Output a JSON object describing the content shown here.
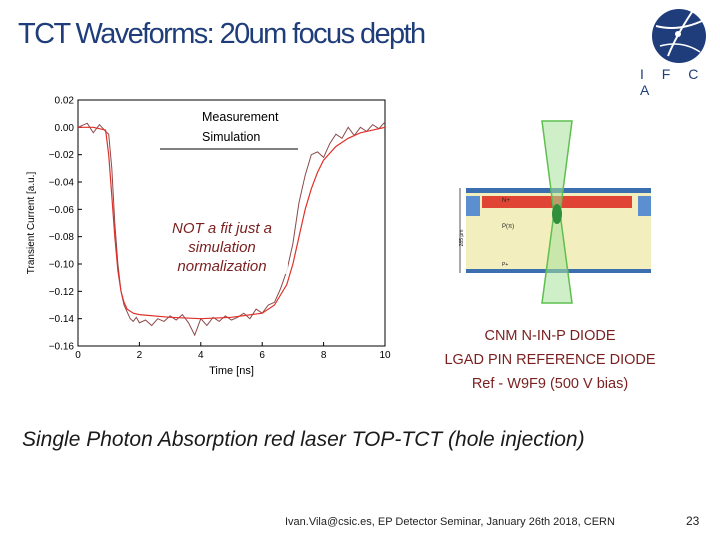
{
  "slide": {
    "title": "TCT Waveforms:  20um focus depth",
    "logo_text": "I F C A",
    "subtitle": "Single Photon Absorption  red laser  TOP-TCT (hole injection)",
    "footer": "Ivan.Vila@csic.es, EP Detector Seminar, January 26th 2018, CERN",
    "page_number": "23",
    "caption_lines": [
      "CNM N-IN-P DIODE",
      "LGAD PIN REFERENCE DIODE",
      "Ref - W9F9  (500 V bias)"
    ],
    "annotation_lines": [
      "NOT a fit just a",
      "simulation",
      "normalization"
    ]
  },
  "diagram": {
    "labels": [
      "N+",
      "P(π)",
      "P+",
      "285 μm"
    ]
  },
  "chart_data": {
    "type": "line",
    "title": "",
    "xlabel": "Time [ns]",
    "ylabel": "Transient Current [a.u.]",
    "xlim": [
      0,
      10
    ],
    "ylim": [
      -0.16,
      0.02
    ],
    "xticks": [
      "0",
      "2",
      "4",
      "6",
      "8",
      "10"
    ],
    "yticks": [
      "0.02",
      "0.00",
      "−0.02",
      "−0.04",
      "−0.06",
      "−0.08",
      "−0.10",
      "−0.12",
      "−0.14",
      "−0.16"
    ],
    "legend_position": "top-right",
    "colors": {
      "measurement": "#8b4a4a",
      "simulation": "#e0302a"
    },
    "series": [
      {
        "name": "Measurement",
        "x": [
          0,
          0.3,
          0.5,
          0.7,
          0.9,
          1.0,
          1.1,
          1.2,
          1.3,
          1.4,
          1.5,
          1.6,
          1.7,
          1.8,
          1.9,
          2.0,
          2.2,
          2.4,
          2.6,
          2.8,
          3.0,
          3.2,
          3.4,
          3.6,
          3.8,
          4.0,
          4.2,
          4.4,
          4.6,
          4.8,
          5.0,
          5.2,
          5.4,
          5.6,
          5.8,
          6.0,
          6.2,
          6.4,
          6.6,
          6.8,
          7.0,
          7.2,
          7.4,
          7.6,
          7.8,
          8.0,
          8.2,
          8.4,
          8.6,
          8.8,
          9.0,
          9.2,
          9.4,
          9.6,
          9.8,
          10.0
        ],
        "y": [
          0.0,
          0.003,
          -0.004,
          0.002,
          -0.003,
          -0.005,
          -0.03,
          -0.07,
          -0.1,
          -0.12,
          -0.13,
          -0.135,
          -0.14,
          -0.142,
          -0.139,
          -0.143,
          -0.141,
          -0.145,
          -0.14,
          -0.142,
          -0.138,
          -0.141,
          -0.137,
          -0.143,
          -0.152,
          -0.14,
          -0.145,
          -0.139,
          -0.142,
          -0.138,
          -0.141,
          -0.139,
          -0.136,
          -0.14,
          -0.133,
          -0.136,
          -0.13,
          -0.128,
          -0.118,
          -0.105,
          -0.085,
          -0.055,
          -0.035,
          -0.02,
          -0.018,
          -0.022,
          -0.012,
          -0.005,
          -0.008,
          0.0,
          -0.006,
          0.0,
          -0.003,
          0.002,
          -0.001,
          0.004
        ]
      },
      {
        "name": "Simulation",
        "x": [
          0,
          0.5,
          0.9,
          1.0,
          1.1,
          1.2,
          1.3,
          1.4,
          1.5,
          1.6,
          1.8,
          2.0,
          3.0,
          4.0,
          5.0,
          6.0,
          6.4,
          6.8,
          7.0,
          7.2,
          7.4,
          7.6,
          7.8,
          8.0,
          8.4,
          8.8,
          9.2,
          9.6,
          10.0
        ],
        "y": [
          0.0,
          0.0,
          -0.002,
          -0.02,
          -0.05,
          -0.08,
          -0.105,
          -0.12,
          -0.128,
          -0.133,
          -0.136,
          -0.137,
          -0.139,
          -0.14,
          -0.139,
          -0.136,
          -0.13,
          -0.115,
          -0.1,
          -0.08,
          -0.06,
          -0.045,
          -0.033,
          -0.024,
          -0.014,
          -0.008,
          -0.004,
          -0.002,
          0.0
        ]
      }
    ]
  }
}
